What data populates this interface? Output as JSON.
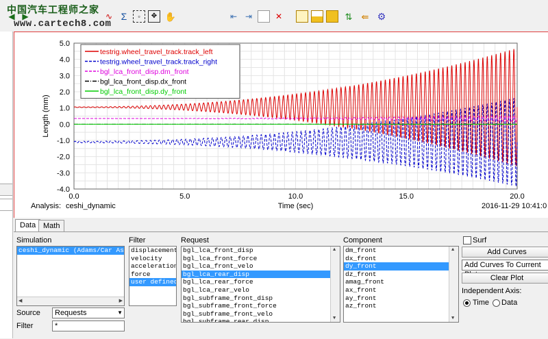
{
  "watermark": {
    "line1": "中国汽车工程师之家",
    "line2": "www.cartech8.com"
  },
  "toolbar": {
    "icons": [
      "curve-icon",
      "sigma-icon",
      "zoom-box-icon",
      "fit-icon",
      "pan-hand-icon",
      "page-prev-icon",
      "page-next-icon",
      "new-page-icon",
      "delete-page-icon",
      "layout-single-icon",
      "layout-split-icon",
      "layout-quad-icon",
      "swap-icon",
      "import-icon",
      "settings-gear-icon"
    ]
  },
  "plot": {
    "analysis_label": "Analysis:",
    "analysis_name": "ceshi_dynamic",
    "timestamp": "2016-11-29 10:41:0",
    "colors": {
      "track_left": "#dd0000",
      "track_right": "#0000cc",
      "dm_front": "#dd00dd",
      "dx_front": "#000000",
      "dy_front": "#00cc00"
    }
  },
  "chart_data": {
    "type": "line",
    "xlabel": "Time (sec)",
    "ylabel": "Length (mm)",
    "xlim": [
      0,
      20
    ],
    "ylim": [
      -4.0,
      5.0
    ],
    "x_ticks": [
      "0.0",
      "5.0",
      "10.0",
      "15.0",
      "20.0"
    ],
    "y_ticks": [
      "5.0",
      "4.0",
      "3.0",
      "2.0",
      "1.0",
      "0.0",
      "-1.0",
      "-2.0",
      "-3.0",
      "-4.0"
    ],
    "grid": true,
    "legend_position": "top-left",
    "series": [
      {
        "name": "testrig.wheel_travel_track.track_left",
        "style": "solid",
        "center": 1.05,
        "amp_start": 0.02,
        "amp_end": 3.65,
        "cycles": 100
      },
      {
        "name": "testrig.wheel_travel_track.track_right",
        "style": "dashed",
        "center": -1.1,
        "amp_start": 0.05,
        "amp_end": 2.75,
        "cycles": 100
      },
      {
        "name": "bgl_lca_front_disp.dm_front",
        "style": "dashed",
        "center": 0.35,
        "amp_start": 0.0,
        "amp_end": 0.18,
        "cycles": 100
      },
      {
        "name": "bgl_lca_front_disp.dx_front",
        "style": "dashdot",
        "center": 0.0,
        "amp_start": 0.0,
        "amp_end": 0.02,
        "cycles": 100
      },
      {
        "name": "bgl_lca_front_disp.dy_front",
        "style": "solid",
        "center": 0.0,
        "amp_start": 0.0,
        "amp_end": 0.0,
        "cycles": 100
      }
    ]
  },
  "tabs": [
    {
      "label": "Data",
      "active": true
    },
    {
      "label": "Math",
      "active": false
    }
  ],
  "simulation": {
    "label": "Simulation",
    "items": [
      {
        "text": "ceshi_dynamic   (Adams/Car As",
        "selected": true
      }
    ]
  },
  "filter": {
    "label": "Filter",
    "items": [
      {
        "text": "displacement",
        "selected": false
      },
      {
        "text": "velocity",
        "selected": false
      },
      {
        "text": "acceleration",
        "selected": false
      },
      {
        "text": "force",
        "selected": false
      },
      {
        "text": "user defined",
        "selected": true
      }
    ]
  },
  "request": {
    "label": "Request",
    "items": [
      {
        "text": "bgl_lca_front_disp",
        "selected": false
      },
      {
        "text": "bgl_lca_front_force",
        "selected": false
      },
      {
        "text": "bgl_lca_front_velo",
        "selected": false
      },
      {
        "text": "bgl_lca_rear_disp",
        "selected": true
      },
      {
        "text": "bgl_lca_rear_force",
        "selected": false
      },
      {
        "text": "bgl_lca_rear_velo",
        "selected": false
      },
      {
        "text": "bgl_subframe_front_disp",
        "selected": false
      },
      {
        "text": "bgl_subframe_front_force",
        "selected": false
      },
      {
        "text": "bgl_subframe_front_velo",
        "selected": false
      },
      {
        "text": "bgl_subframe_rear_disp",
        "selected": false
      }
    ]
  },
  "component": {
    "label": "Component",
    "items": [
      {
        "text": "dm_front",
        "selected": false
      },
      {
        "text": "dx_front",
        "selected": false
      },
      {
        "text": "dy_front",
        "selected": true
      },
      {
        "text": "dz_front",
        "selected": false
      },
      {
        "text": "amag_front",
        "selected": false
      },
      {
        "text": "ax_front",
        "selected": false
      },
      {
        "text": "ay_front",
        "selected": false
      },
      {
        "text": "az_front",
        "selected": false
      }
    ]
  },
  "source": {
    "label": "Source",
    "value": "Requests"
  },
  "filter_field": {
    "label": "Filter",
    "value": "*"
  },
  "controls": {
    "surf_label": "Surf",
    "add_curves": "Add Curves",
    "add_mode": "Add Curves To Current Plot",
    "clear_plot": "Clear Plot",
    "indep_axis_label": "Independent Axis:",
    "time_label": "Time",
    "data_label": "Data"
  }
}
